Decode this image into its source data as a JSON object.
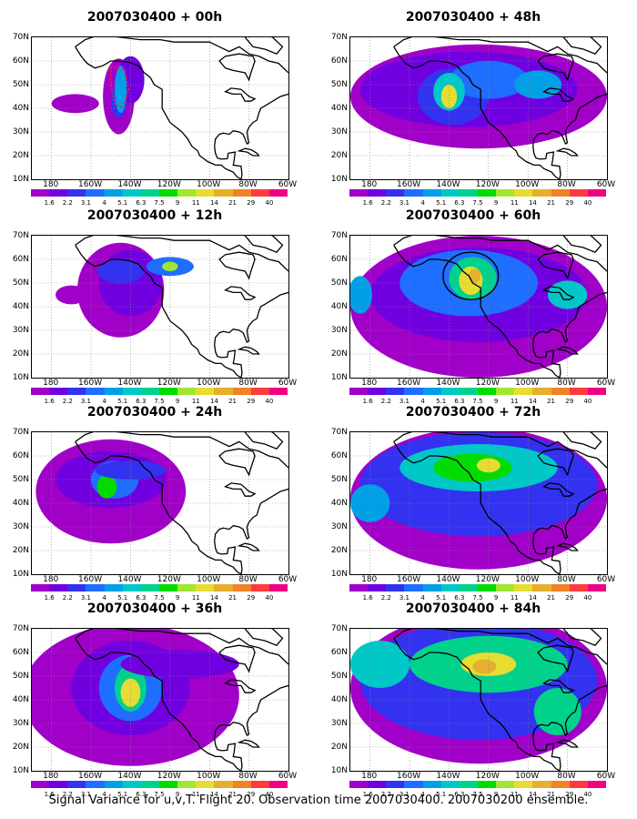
{
  "panels": [
    {
      "title": "2007030400 + 00h"
    },
    {
      "title": "2007030400 + 48h"
    },
    {
      "title": "2007030400 + 12h"
    },
    {
      "title": "2007030400 + 60h"
    },
    {
      "title": "2007030400 + 24h"
    },
    {
      "title": "2007030400 + 72h"
    },
    {
      "title": "2007030400 + 36h"
    },
    {
      "title": "2007030400 + 84h"
    }
  ],
  "lat_labels": [
    "70N",
    "60N",
    "50N",
    "40N",
    "30N",
    "20N",
    "10N"
  ],
  "lon_labels": [
    "180",
    "160W",
    "140W",
    "120W",
    "100W",
    "80W",
    "60W"
  ],
  "colorbar_labels": [
    "1.6",
    "2.2",
    "3.1",
    "4",
    "5.1",
    "6.3",
    "7.5",
    "9",
    "11",
    "14",
    "21",
    "29",
    "40"
  ],
  "colorbar_colors": [
    "#a000c8",
    "#7000e0",
    "#3232f0",
    "#1e6eff",
    "#00a0e6",
    "#00c8c8",
    "#00d28c",
    "#00dc00",
    "#a0e632",
    "#e6dc32",
    "#e6af2d",
    "#f08228",
    "#fa3c3c",
    "#f00082"
  ],
  "caption": "Signal Variance for u,v,T. Flight 20. Observation time 2007030400. 2007030200 ensemble."
}
